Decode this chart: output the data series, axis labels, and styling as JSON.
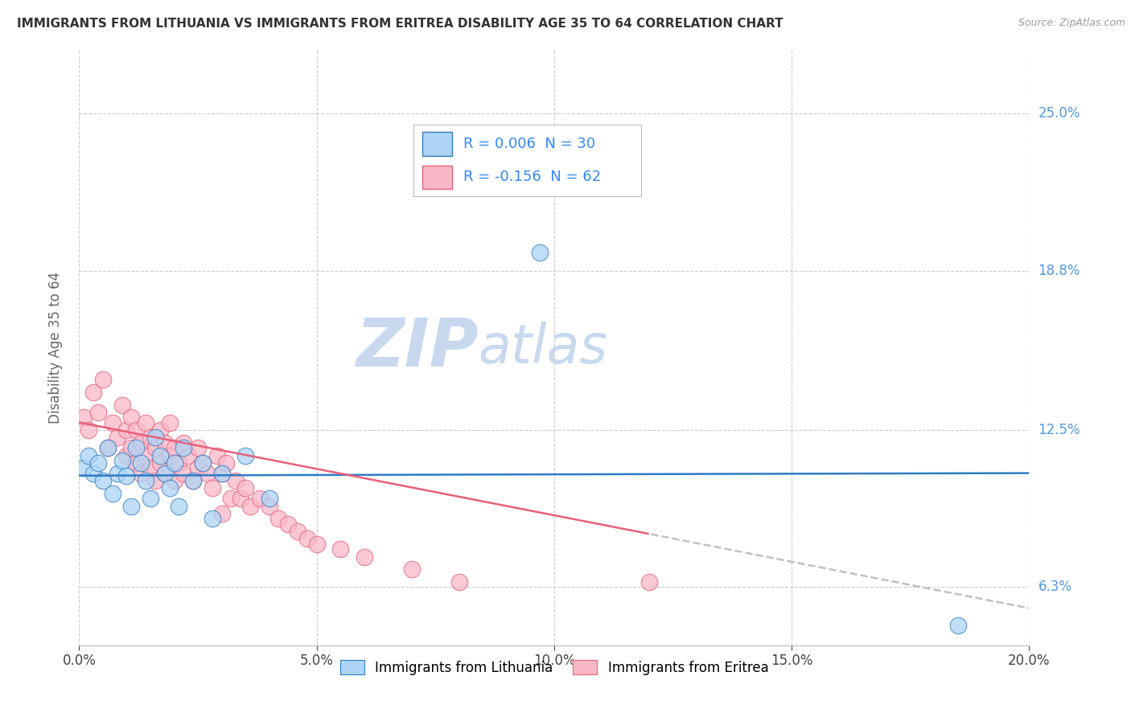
{
  "title": "IMMIGRANTS FROM LITHUANIA VS IMMIGRANTS FROM ERITREA DISABILITY AGE 35 TO 64 CORRELATION CHART",
  "source_text": "Source: ZipAtlas.com",
  "ylabel": "Disability Age 35 to 64",
  "xlim": [
    0.0,
    0.2
  ],
  "ylim": [
    0.04,
    0.275
  ],
  "xtick_labels": [
    "0.0%",
    "5.0%",
    "10.0%",
    "15.0%",
    "20.0%"
  ],
  "xtick_vals": [
    0.0,
    0.05,
    0.1,
    0.15,
    0.2
  ],
  "ytick_labels": [
    "6.3%",
    "12.5%",
    "18.8%",
    "25.0%"
  ],
  "ytick_vals": [
    0.063,
    0.125,
    0.188,
    0.25
  ],
  "legend_label1": "Immigrants from Lithuania",
  "legend_label2": "Immigrants from Eritrea",
  "R1": "0.006",
  "N1": 30,
  "R2": "-0.156",
  "N2": 62,
  "color1": "#ADD4F5",
  "color2": "#F9B8C8",
  "trendline1_color": "#2E7BC4",
  "trendline2_color": "#E8607A",
  "trendline2_dash_color": "#C0C0C0",
  "watermark_zip": "ZIP",
  "watermark_atlas": "atlas",
  "watermark_color_zip": "#C8D8EE",
  "watermark_color_atlas": "#C8D8EE",
  "background_color": "#FFFFFF",
  "grid_color": "#CCCCCC",
  "lithuania_x": [
    0.001,
    0.002,
    0.003,
    0.004,
    0.005,
    0.006,
    0.007,
    0.008,
    0.009,
    0.01,
    0.011,
    0.012,
    0.013,
    0.014,
    0.015,
    0.016,
    0.017,
    0.018,
    0.019,
    0.02,
    0.021,
    0.022,
    0.024,
    0.026,
    0.028,
    0.03,
    0.035,
    0.04,
    0.097,
    0.185
  ],
  "lithuania_y": [
    0.11,
    0.115,
    0.108,
    0.112,
    0.105,
    0.118,
    0.1,
    0.108,
    0.113,
    0.107,
    0.095,
    0.118,
    0.112,
    0.105,
    0.098,
    0.122,
    0.115,
    0.108,
    0.102,
    0.112,
    0.095,
    0.118,
    0.105,
    0.112,
    0.09,
    0.108,
    0.115,
    0.098,
    0.195,
    0.048
  ],
  "eritrea_x": [
    0.001,
    0.002,
    0.003,
    0.004,
    0.005,
    0.006,
    0.007,
    0.008,
    0.009,
    0.01,
    0.01,
    0.011,
    0.011,
    0.012,
    0.012,
    0.013,
    0.013,
    0.014,
    0.014,
    0.015,
    0.015,
    0.016,
    0.016,
    0.017,
    0.017,
    0.018,
    0.018,
    0.019,
    0.019,
    0.02,
    0.02,
    0.021,
    0.022,
    0.022,
    0.023,
    0.024,
    0.025,
    0.025,
    0.026,
    0.027,
    0.028,
    0.029,
    0.03,
    0.031,
    0.032,
    0.033,
    0.034,
    0.035,
    0.036,
    0.038,
    0.04,
    0.042,
    0.044,
    0.046,
    0.048,
    0.05,
    0.055,
    0.06,
    0.07,
    0.08,
    0.03,
    0.12
  ],
  "eritrea_y": [
    0.13,
    0.125,
    0.14,
    0.132,
    0.145,
    0.118,
    0.128,
    0.122,
    0.135,
    0.125,
    0.115,
    0.118,
    0.13,
    0.112,
    0.125,
    0.108,
    0.12,
    0.115,
    0.128,
    0.11,
    0.122,
    0.105,
    0.118,
    0.112,
    0.125,
    0.108,
    0.12,
    0.115,
    0.128,
    0.105,
    0.118,
    0.112,
    0.108,
    0.12,
    0.115,
    0.105,
    0.118,
    0.11,
    0.112,
    0.108,
    0.102,
    0.115,
    0.108,
    0.112,
    0.098,
    0.105,
    0.098,
    0.102,
    0.095,
    0.098,
    0.095,
    0.09,
    0.088,
    0.085,
    0.082,
    0.08,
    0.078,
    0.075,
    0.07,
    0.065,
    0.092,
    0.065
  ],
  "trendline1_y_at_x0": 0.107,
  "trendline1_y_at_x20": 0.108,
  "trendline2_y_at_x0": 0.128,
  "trendline2_y_at_x15": 0.073,
  "trendline2_solid_end": 0.12,
  "trendline2_dash_end": 0.2
}
